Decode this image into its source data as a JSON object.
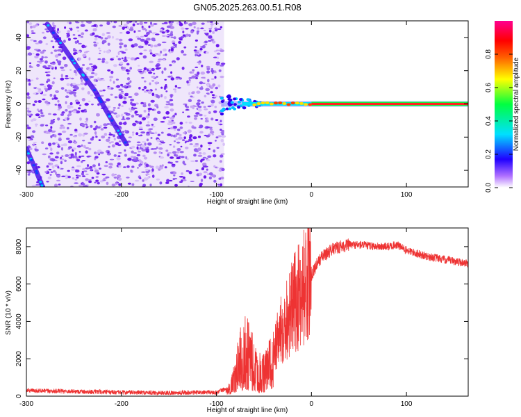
{
  "title": "GN05.2025.263.00.51.R08",
  "chart_data": [
    {
      "type": "heatmap",
      "name": "spectrogram",
      "xlabel": "Height of straight line (km)",
      "ylabel": "Frequency (Hz)",
      "xlim": [
        -300,
        165
      ],
      "ylim": [
        -50,
        50
      ],
      "x_ticks": [
        -300,
        -200,
        -100,
        0,
        100
      ],
      "x_tick_labels": [
        "-300",
        "-200",
        "-100",
        "0",
        "100"
      ],
      "y_ticks": [
        -40,
        -20,
        0,
        20,
        40
      ],
      "y_tick_labels": [
        "-40",
        "-20",
        "0",
        "20",
        "40"
      ],
      "noise_region_x": [
        -300,
        -92
      ],
      "features": [
        {
          "name": "diagonal track upper",
          "x": [
            -278,
            -262,
            -245,
            -228,
            -212,
            -195
          ],
          "y": [
            48,
            35,
            21,
            8,
            -8,
            -24
          ]
        },
        {
          "name": "diagonal track lower",
          "x": [
            -300,
            -290,
            -283
          ],
          "y": [
            -27,
            -40,
            -50
          ]
        },
        {
          "name": "signal line",
          "x": [
            -95,
            -60,
            -30,
            0,
            165
          ],
          "y": [
            -5,
            0,
            0,
            0,
            0
          ]
        }
      ],
      "colorbar": {
        "label": "Normalized spectral amplitude",
        "range": [
          0,
          1
        ],
        "ticks": [
          0.0,
          0.2,
          0.4,
          0.6,
          0.8
        ],
        "tick_labels": [
          "0.0",
          "0.2",
          "0.4",
          "0.6",
          "0.8"
        ],
        "colors": [
          "#ffffff",
          "#7a00ff",
          "#0000ff",
          "#00ffff",
          "#00ff00",
          "#ffff00",
          "#ff8000",
          "#ff0000",
          "#ff00a0"
        ]
      }
    },
    {
      "type": "line",
      "name": "snr",
      "xlabel": "Height of straight line (km)",
      "ylabel": "SNR (10 * v/v)",
      "xlim": [
        -300,
        165
      ],
      "ylim": [
        0,
        9000
      ],
      "x_ticks": [
        -300,
        -200,
        -100,
        0,
        100
      ],
      "x_tick_labels": [
        "-300",
        "-200",
        "-100",
        "0",
        "100"
      ],
      "y_ticks": [
        0,
        2000,
        4000,
        6000,
        8000
      ],
      "y_tick_labels": [
        "0",
        "2000",
        "4000",
        "6000",
        "8000"
      ],
      "color": "#ee3333",
      "series": [
        {
          "name": "SNR",
          "x": [
            -300,
            -250,
            -200,
            -150,
            -100,
            -85,
            -80,
            -75,
            -70,
            -65,
            -60,
            -55,
            -50,
            -45,
            -40,
            -35,
            -30,
            -25,
            -20,
            -15,
            -10,
            -5,
            0,
            5,
            10,
            20,
            30,
            40,
            50,
            60,
            70,
            80,
            90,
            100,
            120,
            140,
            165
          ],
          "y": [
            300,
            250,
            200,
            180,
            200,
            500,
            1500,
            2500,
            3000,
            2500,
            2000,
            1500,
            1500,
            2000,
            2500,
            3000,
            3800,
            4300,
            4800,
            5200,
            5700,
            6100,
            6500,
            7000,
            7400,
            7800,
            8000,
            8100,
            8100,
            8050,
            8000,
            8000,
            8100,
            7800,
            7500,
            7300,
            7100
          ]
        }
      ]
    }
  ]
}
